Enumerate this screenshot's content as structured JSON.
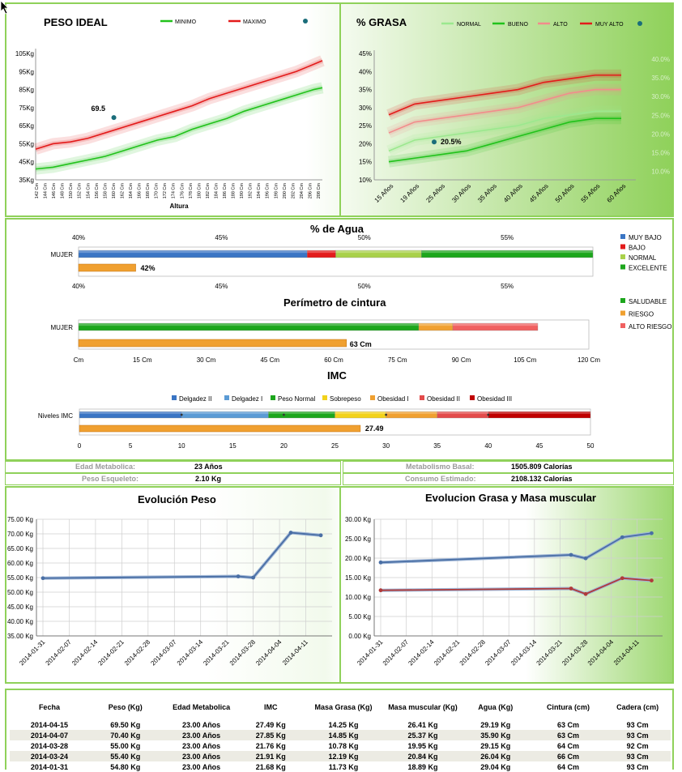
{
  "peso_ideal": {
    "title": "PESO IDEAL",
    "legend": [
      "MINIMO",
      "MAXIMO"
    ],
    "colors": [
      "#21c21b",
      "#e31b1b",
      "#1a6d7a"
    ],
    "y_ticks": [
      "105Kg",
      "95Kg",
      "85Kg",
      "75Kg",
      "65Kg",
      "55Kg",
      "45Kg",
      "35Kg"
    ],
    "x_ticks": [
      "142 Cm",
      "144 Cm",
      "146 Cm",
      "148 Cm",
      "150 Cm",
      "152 Cm",
      "154 Cm",
      "156 Cm",
      "158 Cm",
      "160 Cm",
      "162 Cm",
      "164 Cm",
      "166 Cm",
      "168 Cm",
      "170 Cm",
      "172 Cm",
      "174 Cm",
      "176 Cm",
      "178 Cm",
      "180 Cm",
      "182 Cm",
      "184 Cm",
      "186 Cm",
      "188 Cm",
      "190 Cm",
      "192 Cm",
      "194 Cm",
      "196 Cm",
      "198 Cm",
      "200 Cm",
      "202 Cm",
      "204 Cm",
      "206 Cm",
      "208 Cm"
    ],
    "xlabel": "Altura",
    "point_label": "69.5"
  },
  "grasa": {
    "title": "% GRASA",
    "legend": [
      "NORMAL",
      "BUENO",
      "ALTO",
      "MUY ALTO"
    ],
    "colors": [
      "#9be88e",
      "#21c21b",
      "#f28c8c",
      "#e31b1b"
    ],
    "y_ticks": [
      "45%",
      "40%",
      "35%",
      "30%",
      "25%",
      "20%",
      "15%",
      "10%"
    ],
    "y2_ticks": [
      "40.0%",
      "35.0%",
      "30.0%",
      "25.0%",
      "20.0%",
      "15.0%",
      "10.0%"
    ],
    "x_ticks": [
      "15 Años",
      "19 Años",
      "25 Años",
      "30 Años",
      "35 Años",
      "40 Años",
      "45 Años",
      "50 Años",
      "55 Años",
      "60 Años"
    ],
    "point_label": "20.5%"
  },
  "agua": {
    "title": "% de Agua",
    "row": "MUJER",
    "ticks": [
      "40%",
      "45%",
      "50%",
      "55%"
    ],
    "legend": [
      "MUY BAJO",
      "BAJO",
      "NORMAL",
      "EXCELENTE"
    ],
    "legend_colors": [
      "#3a75c4",
      "#e31b1b",
      "#a9d14a",
      "#1ca61c"
    ],
    "value_label": "42%"
  },
  "cintura": {
    "title": "Perímetro de cintura",
    "row": "MUJER",
    "ticks": [
      "Cm",
      "15 Cm",
      "30 Cm",
      "45 Cm",
      "60 Cm",
      "75 Cm",
      "90 Cm",
      "105 Cm",
      "120 Cm"
    ],
    "legend": [
      "SALUDABLE",
      "RIESGO",
      "ALTO RIESGO"
    ],
    "legend_colors": [
      "#1ca61c",
      "#f0a030",
      "#f06060"
    ],
    "value_label": "63 Cm"
  },
  "imc": {
    "title": "IMC",
    "row": "Niveles IMC",
    "legend": [
      "Delgadez II",
      "Delgadez I",
      "Peso Normal",
      "Sobrepeso",
      "Obesidad I",
      "Obesidad II",
      "Obesidad III"
    ],
    "legend_colors": [
      "#3a75c4",
      "#5b9bd5",
      "#1ca61c",
      "#f2d21b",
      "#f0a030",
      "#e34b4b",
      "#c00000"
    ],
    "ticks": [
      "0",
      "5",
      "10",
      "15",
      "20",
      "25",
      "30",
      "35",
      "40",
      "45",
      "50"
    ],
    "value_label": "27.49"
  },
  "info": {
    "edad_label": "Edad Metabolica:",
    "edad_value": "23 Años",
    "metab_label": "Metabolismo Basal:",
    "metab_value": "1505.809 Calorías",
    "esq_label": "Peso Esqueleto:",
    "esq_value": "2.10 Kg",
    "consumo_label": "Consumo Estimado:",
    "consumo_value": "2108.132 Calorías"
  },
  "evol_peso": {
    "title": "Evolución Peso",
    "y_ticks": [
      "75.00 Kg",
      "70.00 Kg",
      "65.00 Kg",
      "60.00 Kg",
      "55.00 Kg",
      "50.00 Kg",
      "45.00 Kg",
      "40.00 Kg",
      "35.00 Kg"
    ],
    "x_ticks": [
      "2014-01-31",
      "2014-02-07",
      "2014-02-14",
      "2014-02-21",
      "2014-02-28",
      "2014-03-07",
      "2014-03-14",
      "2014-03-21",
      "2014-03-28",
      "2014-04-04",
      "2014-04-11"
    ]
  },
  "evol_grasa": {
    "title": "Evolucion Grasa y Masa muscular",
    "y_ticks": [
      "30.00 Kg",
      "25.00 Kg",
      "20.00 Kg",
      "15.00 Kg",
      "10.00 Kg",
      "5.00 Kg",
      "0.00 Kg"
    ],
    "x_ticks": [
      "2014-01-31",
      "2014-02-07",
      "2014-02-14",
      "2014-02-21",
      "2014-02-28",
      "2014-03-07",
      "2014-03-14",
      "2014-03-21",
      "2014-03-28",
      "2014-04-04",
      "2014-04-11"
    ]
  },
  "table": {
    "headers": [
      "Fecha",
      "Peso (Kg)",
      "Edad Metabolica",
      "IMC",
      "Masa Grasa (Kg)",
      "Masa muscular (Kg)",
      "Agua (Kg)",
      "Cintura (cm)",
      "Cadera (cm)"
    ],
    "rows": [
      [
        "2014-04-15",
        "69.50 Kg",
        "23.00 Años",
        "27.49 Kg",
        "14.25 Kg",
        "26.41 Kg",
        "29.19 Kg",
        "63 Cm",
        "93 Cm"
      ],
      [
        "2014-04-07",
        "70.40 Kg",
        "23.00 Años",
        "27.85 Kg",
        "14.85 Kg",
        "25.37 Kg",
        "35.90 Kg",
        "63 Cm",
        "93 Cm"
      ],
      [
        "2014-03-28",
        "55.00 Kg",
        "23.00 Años",
        "21.76 Kg",
        "10.78 Kg",
        "19.95 Kg",
        "29.15 Kg",
        "64 Cm",
        "92 Cm"
      ],
      [
        "2014-03-24",
        "55.40 Kg",
        "23.00 Años",
        "21.91 Kg",
        "12.19 Kg",
        "20.84 Kg",
        "26.04 Kg",
        "66 Cm",
        "93 Cm"
      ],
      [
        "2014-01-31",
        "54.80 Kg",
        "23.00 Años",
        "21.68 Kg",
        "11.73 Kg",
        "18.89 Kg",
        "29.04 Kg",
        "64 Cm",
        "93 Cm"
      ]
    ]
  },
  "chart_data": [
    {
      "type": "line",
      "title": "PESO IDEAL",
      "xlabel": "Altura",
      "ylim": [
        35,
        105
      ],
      "x": [
        142,
        146,
        150,
        154,
        158,
        162,
        166,
        170,
        174,
        178,
        182,
        186,
        190,
        194,
        198,
        202,
        206,
        208
      ],
      "series": [
        {
          "name": "MINIMO",
          "values": [
            41,
            42,
            44,
            46,
            48,
            51,
            54,
            57,
            59,
            63,
            66,
            69,
            73,
            76,
            79,
            82,
            85,
            86
          ]
        },
        {
          "name": "MAXIMO",
          "values": [
            52,
            55,
            56,
            58,
            61,
            64,
            67,
            70,
            73,
            76,
            80,
            83,
            86,
            89,
            92,
            95,
            99,
            101
          ]
        }
      ],
      "point": {
        "x": 160,
        "y": 69.5,
        "label": "69.5"
      }
    },
    {
      "type": "line",
      "title": "% GRASA",
      "ylim": [
        10,
        45
      ],
      "categories": [
        "15 Años",
        "19 Años",
        "25 Años",
        "30 Años",
        "35 Años",
        "40 Años",
        "45 Años",
        "50 Años",
        "55 Años",
        "60 Años"
      ],
      "series": [
        {
          "name": "NORMAL",
          "values": [
            18,
            21,
            22,
            23,
            24,
            25,
            27,
            28,
            29,
            29
          ]
        },
        {
          "name": "BUENO",
          "values": [
            15,
            16,
            17,
            18,
            20,
            22,
            24,
            26,
            27,
            27
          ]
        },
        {
          "name": "ALTO",
          "values": [
            23,
            26,
            27,
            28,
            29,
            30,
            32,
            34,
            35,
            35
          ]
        },
        {
          "name": "MUY ALTO",
          "values": [
            28,
            31,
            32,
            33,
            34,
            35,
            37,
            38,
            39,
            39
          ]
        }
      ],
      "point": {
        "x": "25 Años",
        "y": 20.5,
        "label": "20.5%"
      }
    },
    {
      "type": "bar",
      "title": "% de Agua",
      "xlim": [
        40,
        58
      ],
      "segments": [
        {
          "name": "MUY BAJO",
          "from": 40,
          "to": 48
        },
        {
          "name": "BAJO",
          "from": 48,
          "to": 49
        },
        {
          "name": "NORMAL",
          "from": 49,
          "to": 52
        },
        {
          "name": "EXCELENTE",
          "from": 52,
          "to": 58
        }
      ],
      "value": 42
    },
    {
      "type": "bar",
      "title": "Perímetro de cintura",
      "xlim": [
        0,
        120
      ],
      "segments": [
        {
          "name": "SALUDABLE",
          "from": 0,
          "to": 80
        },
        {
          "name": "RIESGO",
          "from": 80,
          "to": 88
        },
        {
          "name": "ALTO RIESGO",
          "from": 88,
          "to": 108
        }
      ],
      "value": 63
    },
    {
      "type": "bar",
      "title": "IMC",
      "xlim": [
        0,
        50
      ],
      "segments": [
        {
          "name": "Delgadez II",
          "from": 0,
          "to": 10
        },
        {
          "name": "Delgadez I",
          "from": 10,
          "to": 18.5
        },
        {
          "name": "Peso Normal",
          "from": 18.5,
          "to": 25
        },
        {
          "name": "Sobrepeso",
          "from": 25,
          "to": 30
        },
        {
          "name": "Obesidad I",
          "from": 30,
          "to": 35
        },
        {
          "name": "Obesidad II",
          "from": 35,
          "to": 40
        },
        {
          "name": "Obesidad III",
          "from": 40,
          "to": 50
        }
      ],
      "value": 27.49
    },
    {
      "type": "line",
      "title": "Evolución Peso",
      "ylim": [
        35,
        75
      ],
      "x": [
        "2014-01-31",
        "2014-03-24",
        "2014-03-28",
        "2014-04-07",
        "2014-04-15"
      ],
      "series": [
        {
          "values": [
            54.8,
            55.4,
            55.0,
            70.4,
            69.5
          ]
        }
      ]
    },
    {
      "type": "line",
      "title": "Evolucion Grasa y Masa muscular",
      "ylim": [
        0,
        30
      ],
      "x": [
        "2014-01-31",
        "2014-03-24",
        "2014-03-28",
        "2014-04-07",
        "2014-04-15"
      ],
      "series": [
        {
          "values": [
            18.89,
            20.84,
            19.95,
            25.37,
            26.41
          ]
        },
        {
          "values": [
            11.73,
            12.19,
            10.78,
            14.85,
            14.25
          ]
        }
      ]
    }
  ]
}
